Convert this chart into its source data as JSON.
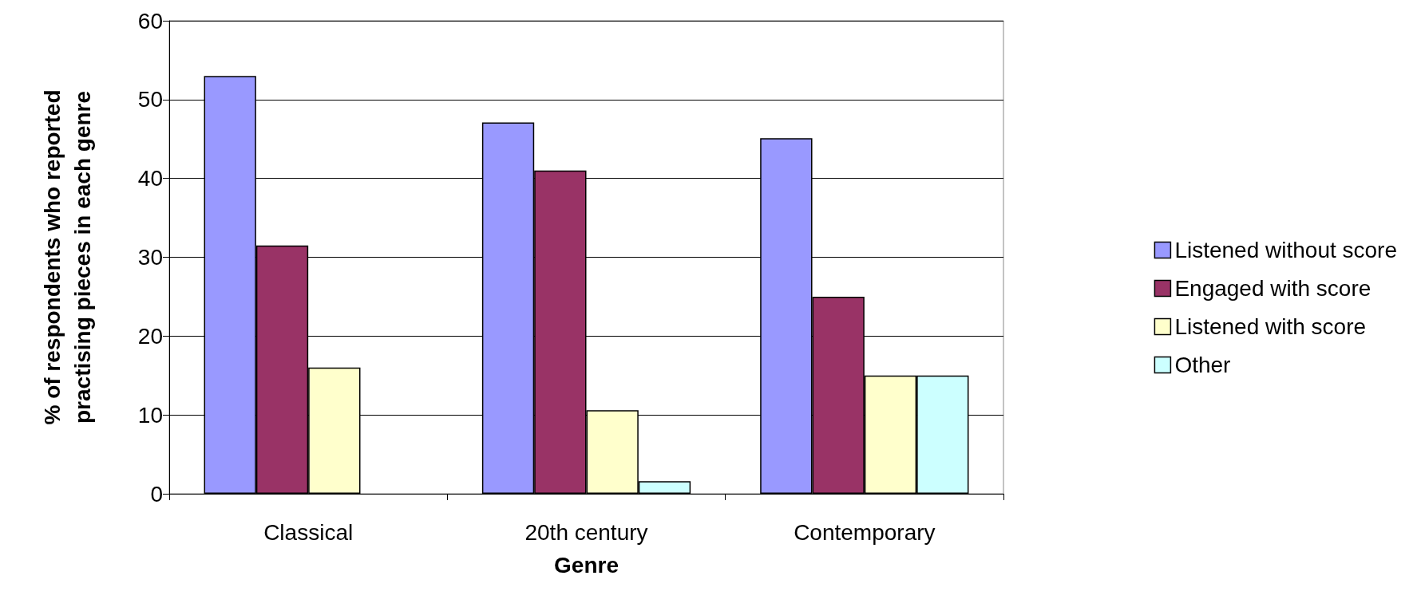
{
  "chart_data": {
    "type": "bar",
    "xlabel": "Genre",
    "ylabel": "% of respondents who reported\npractising pieces in each genre",
    "categories": [
      "Classical",
      "20th century",
      "Contemporary"
    ],
    "series": [
      {
        "name": "Listened without score",
        "color": "#9999ff",
        "values": [
          53,
          47.1,
          45.1
        ]
      },
      {
        "name": "Engaged with score",
        "color": "#993366",
        "values": [
          31.5,
          41,
          25
        ]
      },
      {
        "name": "Listened with score",
        "color": "#ffffcc",
        "values": [
          16,
          10.6,
          15
        ]
      },
      {
        "name": "Other",
        "color": "#ccffff",
        "values": [
          null,
          1.6,
          15
        ]
      }
    ],
    "ylim": [
      0,
      60
    ],
    "yticks": [
      0,
      10,
      20,
      30,
      40,
      50,
      60
    ],
    "grid": "y",
    "legend": "right"
  }
}
